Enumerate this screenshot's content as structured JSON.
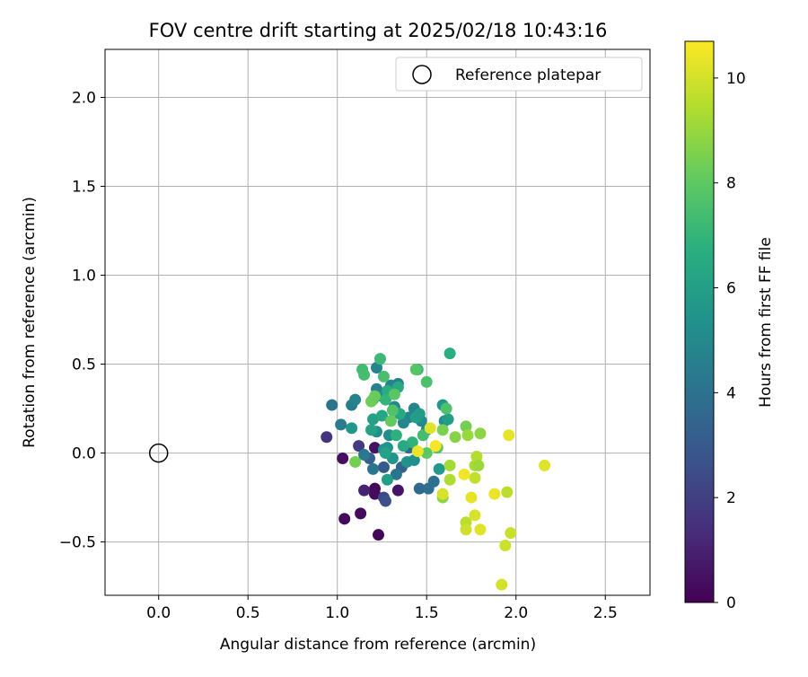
{
  "chart_data": {
    "type": "scatter",
    "title": "FOV centre drift starting at 2025/02/18 10:43:16",
    "xlabel": "Angular distance from reference (arcmin)",
    "ylabel": "Rotation from reference (arcmin)",
    "xlim": [
      -0.3,
      2.75
    ],
    "ylim": [
      -0.8,
      2.27
    ],
    "xticks": [
      0.0,
      0.5,
      1.0,
      1.5,
      2.0,
      2.5
    ],
    "xtick_labels": [
      "0.0",
      "0.5",
      "1.0",
      "1.5",
      "2.0",
      "2.5"
    ],
    "yticks": [
      -0.5,
      0.0,
      0.5,
      1.0,
      1.5,
      2.0
    ],
    "ytick_labels": [
      "−0.5",
      "0.0",
      "0.5",
      "1.0",
      "1.5",
      "2.0"
    ],
    "grid": true,
    "legend": {
      "location": "top-right",
      "entries": [
        "Reference platepar"
      ]
    },
    "reference_point": {
      "x": 0.0,
      "y": 0.0,
      "name": "Reference platepar"
    },
    "colorbar": {
      "label": "Hours from first FF file",
      "colormap": "viridis",
      "range": [
        0,
        10.7
      ],
      "ticks": [
        0,
        2,
        4,
        6,
        8,
        10
      ],
      "tick_labels": [
        "0",
        "2",
        "4",
        "6",
        "8",
        "10"
      ]
    },
    "points": [
      {
        "x": 1.21,
        "y": -0.2,
        "t": 0.2
      },
      {
        "x": 1.21,
        "y": -0.23,
        "t": 0.3
      },
      {
        "x": 1.04,
        "y": -0.37,
        "t": 0.2
      },
      {
        "x": 1.13,
        "y": -0.34,
        "t": 0.3
      },
      {
        "x": 1.23,
        "y": -0.46,
        "t": 0.2
      },
      {
        "x": 1.03,
        "y": -0.03,
        "t": 0.4
      },
      {
        "x": 1.21,
        "y": 0.03,
        "t": 0.5
      },
      {
        "x": 1.34,
        "y": -0.21,
        "t": 0.6
      },
      {
        "x": 1.15,
        "y": -0.21,
        "t": 1.0
      },
      {
        "x": 0.94,
        "y": 0.09,
        "t": 1.6
      },
      {
        "x": 1.12,
        "y": 0.04,
        "t": 1.8
      },
      {
        "x": 1.26,
        "y": -0.25,
        "t": 2.3
      },
      {
        "x": 1.27,
        "y": -0.27,
        "t": 2.6
      },
      {
        "x": 1.26,
        "y": -0.08,
        "t": 3.0
      },
      {
        "x": 1.18,
        "y": -0.03,
        "t": 3.2
      },
      {
        "x": 1.36,
        "y": -0.08,
        "t": 3.4
      },
      {
        "x": 1.4,
        "y": 0.03,
        "t": 3.5
      },
      {
        "x": 1.46,
        "y": -0.2,
        "t": 3.7
      },
      {
        "x": 1.51,
        "y": -0.2,
        "t": 3.9
      },
      {
        "x": 1.54,
        "y": -0.16,
        "t": 4.0
      },
      {
        "x": 1.33,
        "y": -0.12,
        "t": 4.1
      },
      {
        "x": 1.2,
        "y": -0.09,
        "t": 4.2
      },
      {
        "x": 1.15,
        "y": -0.01,
        "t": 4.3
      },
      {
        "x": 0.97,
        "y": 0.27,
        "t": 4.1
      },
      {
        "x": 1.02,
        "y": 0.16,
        "t": 4.4
      },
      {
        "x": 1.08,
        "y": 0.27,
        "t": 4.5
      },
      {
        "x": 1.1,
        "y": 0.3,
        "t": 4.6
      },
      {
        "x": 1.22,
        "y": 0.36,
        "t": 4.6
      },
      {
        "x": 1.22,
        "y": 0.48,
        "t": 4.8
      },
      {
        "x": 1.3,
        "y": 0.38,
        "t": 4.7
      },
      {
        "x": 1.34,
        "y": 0.39,
        "t": 4.6
      },
      {
        "x": 1.25,
        "y": 0.32,
        "t": 4.9
      },
      {
        "x": 1.32,
        "y": 0.26,
        "t": 5.0
      },
      {
        "x": 1.43,
        "y": 0.25,
        "t": 4.8
      },
      {
        "x": 1.4,
        "y": 0.2,
        "t": 4.7
      },
      {
        "x": 1.37,
        "y": 0.17,
        "t": 4.9
      },
      {
        "x": 1.47,
        "y": 0.18,
        "t": 5.1
      },
      {
        "x": 1.29,
        "y": 0.1,
        "t": 5.2
      },
      {
        "x": 1.22,
        "y": 0.12,
        "t": 5.3
      },
      {
        "x": 1.26,
        "y": 0.02,
        "t": 5.4
      },
      {
        "x": 1.28,
        "y": 0.03,
        "t": 5.5
      },
      {
        "x": 1.31,
        "y": -0.03,
        "t": 5.6
      },
      {
        "x": 1.39,
        "y": -0.05,
        "t": 5.4
      },
      {
        "x": 1.43,
        "y": -0.04,
        "t": 5.3
      },
      {
        "x": 1.57,
        "y": -0.09,
        "t": 5.7
      },
      {
        "x": 1.28,
        "y": -0.15,
        "t": 5.9
      },
      {
        "x": 1.59,
        "y": 0.27,
        "t": 5.6
      },
      {
        "x": 1.6,
        "y": 0.18,
        "t": 5.2
      },
      {
        "x": 1.62,
        "y": 0.19,
        "t": 5.9
      },
      {
        "x": 1.5,
        "y": 0.13,
        "t": 5.0
      },
      {
        "x": 1.19,
        "y": 0.13,
        "t": 6.2
      },
      {
        "x": 1.08,
        "y": 0.14,
        "t": 5.6
      },
      {
        "x": 1.2,
        "y": 0.19,
        "t": 6.1
      },
      {
        "x": 1.25,
        "y": 0.21,
        "t": 6.3
      },
      {
        "x": 1.35,
        "y": 0.22,
        "t": 6.4
      },
      {
        "x": 1.34,
        "y": 0.37,
        "t": 6.5
      },
      {
        "x": 1.28,
        "y": 0.35,
        "t": 6.6
      },
      {
        "x": 1.27,
        "y": 0.3,
        "t": 7.0
      },
      {
        "x": 1.2,
        "y": 0.3,
        "t": 7.1
      },
      {
        "x": 1.24,
        "y": 0.53,
        "t": 7.2
      },
      {
        "x": 1.26,
        "y": 0.43,
        "t": 7.5
      },
      {
        "x": 1.14,
        "y": 0.47,
        "t": 7.3
      },
      {
        "x": 1.15,
        "y": 0.44,
        "t": 7.4
      },
      {
        "x": 1.45,
        "y": 0.47,
        "t": 7.0
      },
      {
        "x": 1.44,
        "y": 0.47,
        "t": 7.8
      },
      {
        "x": 1.5,
        "y": 0.4,
        "t": 7.6
      },
      {
        "x": 1.63,
        "y": 0.56,
        "t": 6.7
      },
      {
        "x": 1.31,
        "y": 0.24,
        "t": 7.7
      },
      {
        "x": 1.3,
        "y": 0.18,
        "t": 8.1
      },
      {
        "x": 1.19,
        "y": 0.29,
        "t": 8.3
      },
      {
        "x": 1.21,
        "y": 0.32,
        "t": 8.2
      },
      {
        "x": 1.32,
        "y": 0.33,
        "t": 7.9
      },
      {
        "x": 1.48,
        "y": 0.1,
        "t": 7.4
      },
      {
        "x": 1.42,
        "y": 0.06,
        "t": 6.9
      },
      {
        "x": 1.33,
        "y": 0.1,
        "t": 6.8
      },
      {
        "x": 1.37,
        "y": 0.04,
        "t": 6.5
      },
      {
        "x": 1.27,
        "y": 0.0,
        "t": 6.1
      },
      {
        "x": 1.44,
        "y": 0.2,
        "t": 6.0
      },
      {
        "x": 1.46,
        "y": 0.22,
        "t": 5.8
      },
      {
        "x": 1.1,
        "y": -0.05,
        "t": 8.4
      },
      {
        "x": 1.61,
        "y": 0.25,
        "t": 7.6
      },
      {
        "x": 1.59,
        "y": 0.13,
        "t": 8.5
      },
      {
        "x": 1.5,
        "y": 0.0,
        "t": 8.0
      },
      {
        "x": 1.56,
        "y": 0.03,
        "t": 7.8
      },
      {
        "x": 1.66,
        "y": 0.09,
        "t": 8.7
      },
      {
        "x": 1.72,
        "y": 0.15,
        "t": 8.4
      },
      {
        "x": 1.73,
        "y": 0.1,
        "t": 9.0
      },
      {
        "x": 1.8,
        "y": 0.11,
        "t": 8.8
      },
      {
        "x": 1.59,
        "y": -0.25,
        "t": 8.8
      },
      {
        "x": 1.63,
        "y": -0.07,
        "t": 9.2
      },
      {
        "x": 1.63,
        "y": -0.15,
        "t": 9.4
      },
      {
        "x": 1.77,
        "y": -0.07,
        "t": 9.3
      },
      {
        "x": 1.78,
        "y": -0.02,
        "t": 9.5
      },
      {
        "x": 1.79,
        "y": -0.07,
        "t": 9.1
      },
      {
        "x": 1.77,
        "y": -0.14,
        "t": 9.7
      },
      {
        "x": 1.72,
        "y": -0.39,
        "t": 9.6
      },
      {
        "x": 1.72,
        "y": -0.43,
        "t": 9.9
      },
      {
        "x": 1.77,
        "y": -0.35,
        "t": 10.1
      },
      {
        "x": 1.8,
        "y": -0.43,
        "t": 10.2
      },
      {
        "x": 1.75,
        "y": -0.25,
        "t": 10.3
      },
      {
        "x": 1.71,
        "y": -0.12,
        "t": 10.5
      },
      {
        "x": 1.52,
        "y": 0.14,
        "t": 10.2
      },
      {
        "x": 1.45,
        "y": 0.01,
        "t": 10.4
      },
      {
        "x": 1.55,
        "y": 0.04,
        "t": 10.6
      },
      {
        "x": 1.59,
        "y": -0.23,
        "t": 10.1
      },
      {
        "x": 1.88,
        "y": -0.23,
        "t": 10.4
      },
      {
        "x": 1.95,
        "y": -0.22,
        "t": 9.6
      },
      {
        "x": 1.97,
        "y": -0.45,
        "t": 9.8
      },
      {
        "x": 1.94,
        "y": -0.52,
        "t": 9.9
      },
      {
        "x": 1.92,
        "y": -0.74,
        "t": 10.0
      },
      {
        "x": 1.96,
        "y": 0.1,
        "t": 10.3
      },
      {
        "x": 2.16,
        "y": -0.07,
        "t": 10.2
      }
    ]
  }
}
